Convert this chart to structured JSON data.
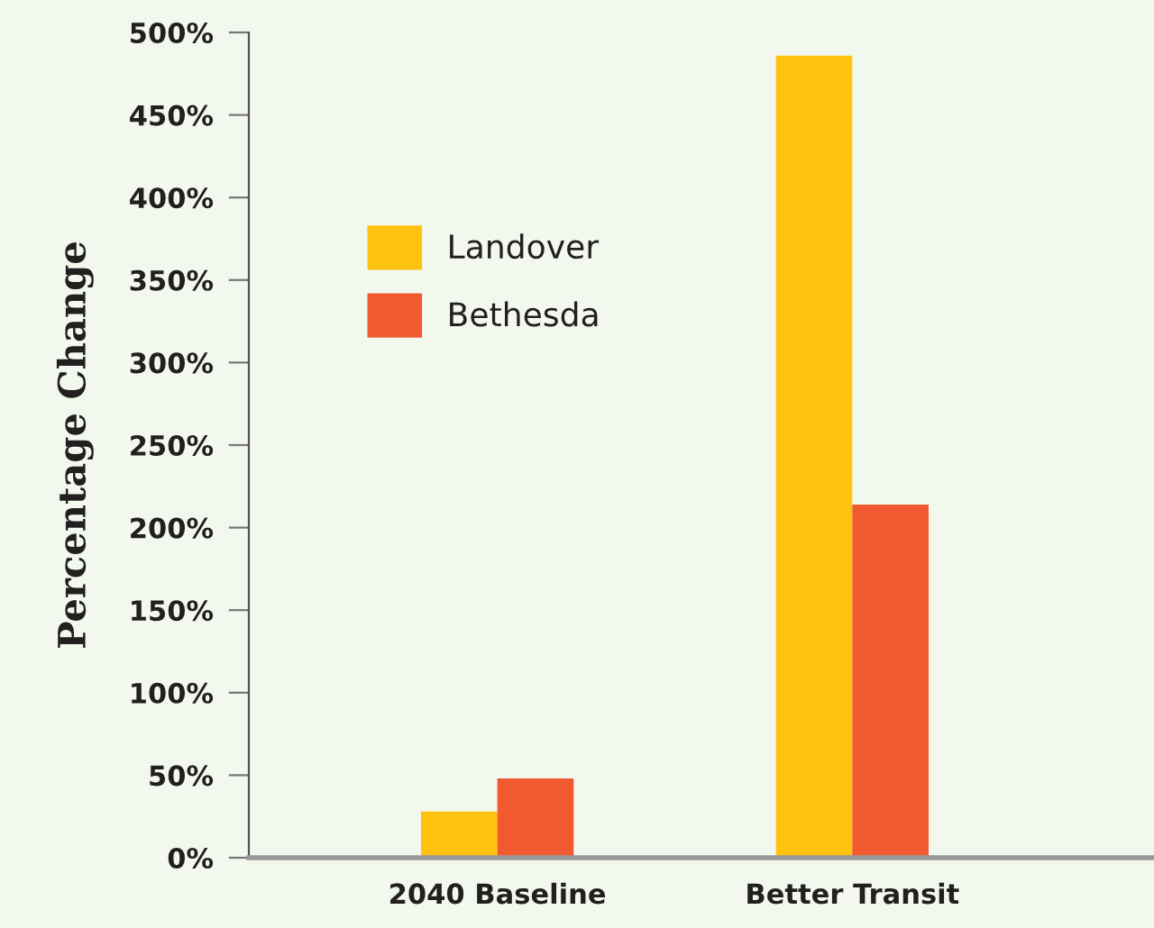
{
  "chart_data": {
    "type": "bar",
    "ylabel": "Percentage Change",
    "categories": [
      "2040 Baseline",
      "Better Transit"
    ],
    "series": [
      {
        "name": "Landover",
        "color": "#ffc20e",
        "values": [
          28,
          486
        ]
      },
      {
        "name": "Bethesda",
        "color": "#f15a31",
        "values": [
          48,
          214
        ]
      }
    ],
    "ylim": [
      0,
      500
    ],
    "yticks": [
      {
        "value": 0,
        "label": "0%"
      },
      {
        "value": 50,
        "label": "50%"
      },
      {
        "value": 100,
        "label": "100%"
      },
      {
        "value": 150,
        "label": "150%"
      },
      {
        "value": 200,
        "label": "200%"
      },
      {
        "value": 250,
        "label": "250%"
      },
      {
        "value": 300,
        "label": "300%"
      },
      {
        "value": 350,
        "label": "350%"
      },
      {
        "value": 400,
        "label": "400%"
      },
      {
        "value": 450,
        "label": "450%"
      },
      {
        "value": 500,
        "label": "500%"
      }
    ],
    "grid": false,
    "legend": "top left"
  }
}
